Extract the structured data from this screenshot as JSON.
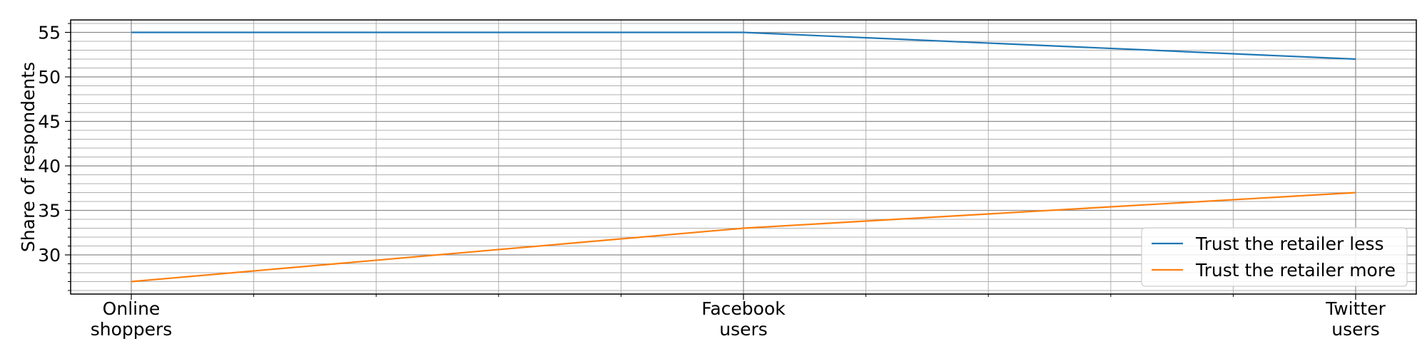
{
  "chart_data": {
    "type": "line",
    "title": "",
    "xlabel": "",
    "ylabel": "Share of respondents",
    "categories": [
      [
        "Online",
        "shoppers"
      ],
      [
        "Facebook",
        "users"
      ],
      [
        "Twitter",
        "users"
      ]
    ],
    "series": [
      {
        "name": "Trust the retailer less",
        "values": [
          55,
          55,
          52
        ],
        "color": "#1f77b4"
      },
      {
        "name": "Trust the retailer more",
        "values": [
          27,
          33,
          37
        ],
        "color": "#ff7f0e"
      }
    ],
    "ylim": [
      25.6,
      56.4
    ],
    "yticks": [
      30,
      35,
      40,
      45,
      50,
      55
    ],
    "yminor_step": 1,
    "x_minor_subdivisions": 5,
    "grid": true,
    "legend": "lower-right"
  }
}
